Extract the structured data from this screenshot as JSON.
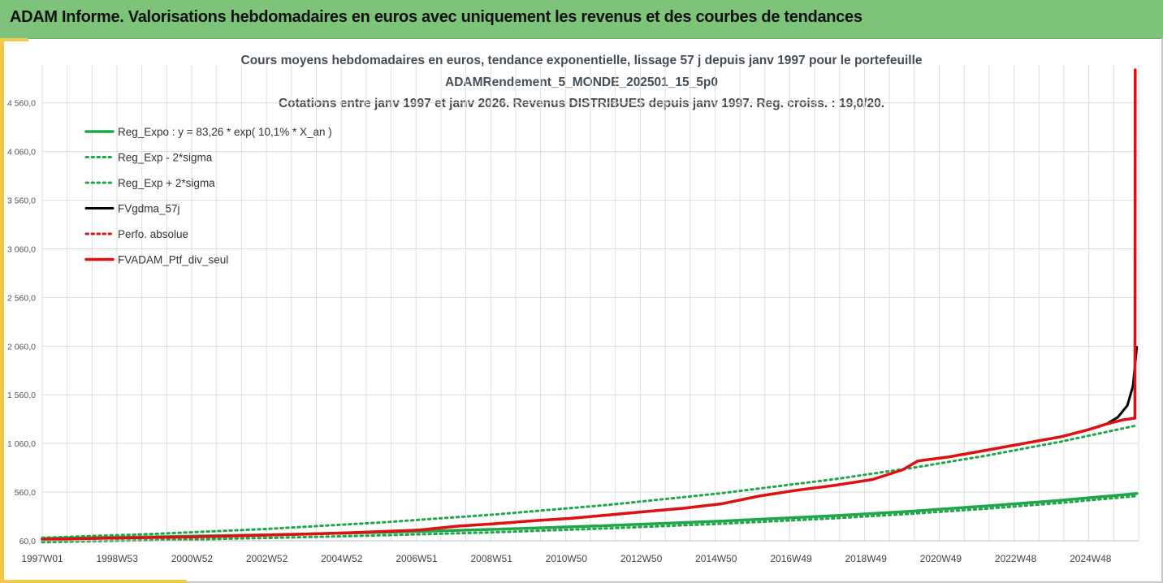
{
  "header": {
    "title": "ADAM Informe. Valorisations hebdomadaires en euros avec uniquement les revenus et des courbes de tendances"
  },
  "chart_data": {
    "type": "line",
    "title_lines": [
      "Cours moyens hebdomadaires  en euros, tendance exponentielle, lissage 57 j depuis janv 1997 pour le portefeuille",
      "ADAMRendement_5_MONDE_202501_15_5p0",
      "Cotations entre janv 1997 et janv 2026. Revenus DISTRIBUES depuis janv 1997. Reg. croiss. : 19,0/20."
    ],
    "xlabel": "",
    "ylabel": "",
    "x_ticks": [
      "1997W01",
      "1998W53",
      "2000W52",
      "2002W52",
      "2004W52",
      "2006W51",
      "2008W51",
      "2010W50",
      "2012W50",
      "2014W50",
      "2016W49",
      "2018W49",
      "2020W49",
      "2022W48",
      "2024W48"
    ],
    "x_range_years": [
      1997.0,
      2026.05
    ],
    "ylim": [
      60,
      4950
    ],
    "y_ticks": [
      60,
      560,
      1060,
      1560,
      2060,
      2560,
      3060,
      3560,
      4060,
      4560
    ],
    "y_tick_labels": [
      "60,0",
      "560,0",
      "1 060,0",
      "1 560,0",
      "2 060,0",
      "2 560,0",
      "3 060,0",
      "3 560,0",
      "4 060,0",
      "4 560,0"
    ],
    "grid": true,
    "legend_position": "top-left",
    "series": [
      {
        "name": "Reg_Expo : y = 83,26 * exp( 10,1% *  X_an )",
        "color": "#1fa64a",
        "style": "solid",
        "x": [
          1997.0,
          2000,
          2003,
          2006,
          2009,
          2012,
          2015,
          2018,
          2020,
          2022,
          2024,
          2026.0
        ],
        "y": [
          83,
          101,
          122,
          147,
          178,
          216,
          262,
          318,
          363,
          416,
          476,
          545
        ]
      },
      {
        "name": "Reg_Exp - 2*sigma",
        "color": "#1fa64a",
        "style": "dotted",
        "x": [
          1997.0,
          2000,
          2003,
          2006,
          2009,
          2012,
          2015,
          2018,
          2020,
          2022,
          2024,
          2026.0
        ],
        "y": [
          46,
          67,
          89,
          116,
          148,
          188,
          235,
          291,
          337,
          390,
          450,
          520
        ]
      },
      {
        "name": "Reg_Exp + 2*sigma",
        "color": "#1fa64a",
        "style": "dotted",
        "x": [
          1997.0,
          2000,
          2003,
          2006,
          2009,
          2012,
          2015,
          2018,
          2020,
          2022,
          2024,
          2026.0
        ],
        "y": [
          91,
          131,
          183,
          249,
          330,
          429,
          549,
          693,
          806,
          934,
          1080,
          1245
        ]
      },
      {
        "name": "FVgdma_57j",
        "color": "#000000",
        "style": "solid",
        "x": [
          1997.0,
          1999,
          2001,
          2003,
          2005,
          2007,
          2008,
          2009,
          2010,
          2011,
          2012,
          2013,
          2014,
          2015,
          2016,
          2017,
          2018,
          2019,
          2019.8,
          2020.2,
          2021,
          2022,
          2023,
          2024,
          2024.7,
          2025.2,
          2025.5,
          2025.75,
          2025.9,
          2026.0
        ],
        "y": [
          75,
          88,
          100,
          118,
          140,
          170,
          210,
          235,
          265,
          290,
          325,
          360,
          395,
          440,
          520,
          580,
          630,
          690,
          790,
          880,
          920,
          990,
          1060,
          1130,
          1200,
          1260,
          1330,
          1450,
          1650,
          2050
        ]
      },
      {
        "name": "Perfo. absolue",
        "color": "#e01010",
        "style": "dotted",
        "x": [
          1997.0,
          1999,
          2001,
          2003,
          2005,
          2007,
          2008,
          2009,
          2010,
          2011,
          2012,
          2013,
          2014,
          2015,
          2016,
          2017,
          2018,
          2019,
          2019.8,
          2020.2,
          2021,
          2022,
          2023,
          2024,
          2024.7,
          2025.2,
          2025.6,
          2025.95
        ],
        "y": [
          75,
          88,
          100,
          118,
          140,
          170,
          210,
          235,
          265,
          290,
          325,
          360,
          395,
          440,
          520,
          580,
          630,
          690,
          790,
          880,
          920,
          990,
          1060,
          1130,
          1200,
          1260,
          1300,
          1320
        ]
      },
      {
        "name": "FVADAM_Ptf_div_seul",
        "color": "#e01010",
        "style": "solid",
        "x": [
          1997.0,
          1999,
          2001,
          2003,
          2005,
          2007,
          2008,
          2009,
          2010,
          2011,
          2012,
          2013,
          2014,
          2015,
          2016,
          2017,
          2018,
          2019,
          2019.8,
          2020.2,
          2021,
          2022,
          2023,
          2024,
          2024.7,
          2025.2,
          2025.6,
          2025.95,
          2025.96
        ],
        "y": [
          75,
          88,
          100,
          118,
          140,
          170,
          210,
          235,
          265,
          290,
          325,
          360,
          395,
          440,
          520,
          580,
          630,
          690,
          790,
          880,
          920,
          990,
          1060,
          1130,
          1200,
          1260,
          1300,
          1320,
          4900
        ]
      }
    ]
  }
}
